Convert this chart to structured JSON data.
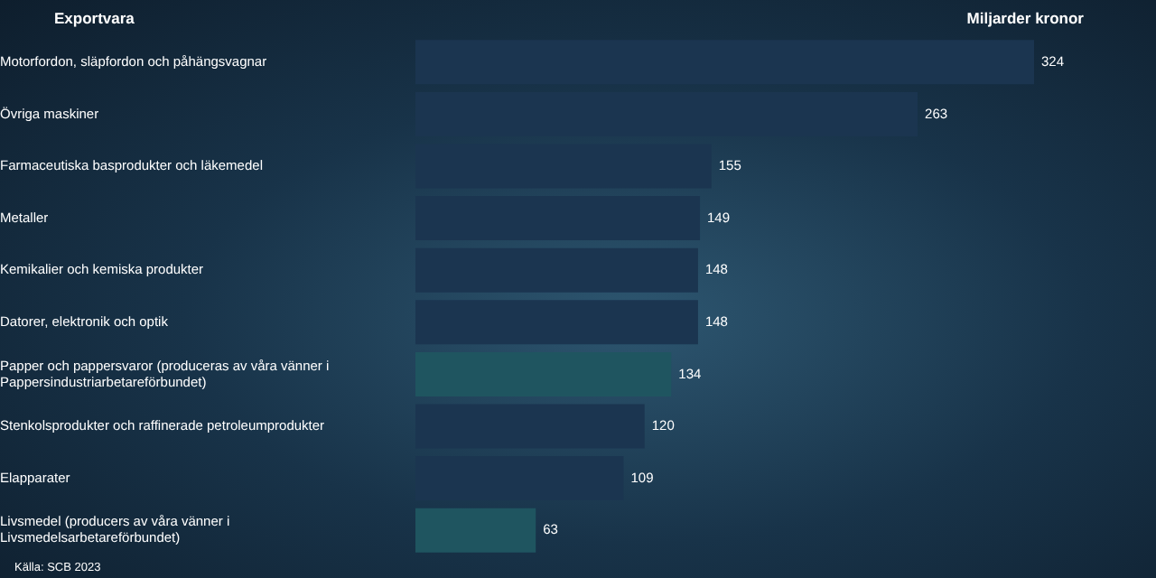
{
  "chart_data": {
    "type": "bar",
    "orientation": "horizontal",
    "ylabel": "Exportvara",
    "xlabel": "Miljarder kronor",
    "categories": [
      "Motorfordon, släpfordon och påhängsvagnar",
      "Övriga maskiner",
      "Farmaceutiska basprodukter och läkemedel",
      "Metaller",
      "Kemikalier och kemiska produkter",
      "Datorer, elektronik och optik",
      "Papper och pappersvaror (produceras av våra vänner i Pappersindustriarbetareförbundet)",
      "Stenkolsprodukter och raffinerade petroleumprodukter",
      "Elapparater",
      "Livsmedel (producers av våra vänner i Livsmedelsarbetareförbundet)"
    ],
    "values": [
      324,
      263,
      155,
      149,
      148,
      148,
      134,
      120,
      109,
      63
    ],
    "colors": [
      "#1b3550",
      "#1b3550",
      "#1b3550",
      "#1b3550",
      "#1b3550",
      "#1b3550",
      "#1f5560",
      "#1b3550",
      "#1b3550",
      "#1f5560"
    ],
    "data_labels": true,
    "legend": false,
    "annotations": [
      "Källa: SCB 2023"
    ]
  }
}
